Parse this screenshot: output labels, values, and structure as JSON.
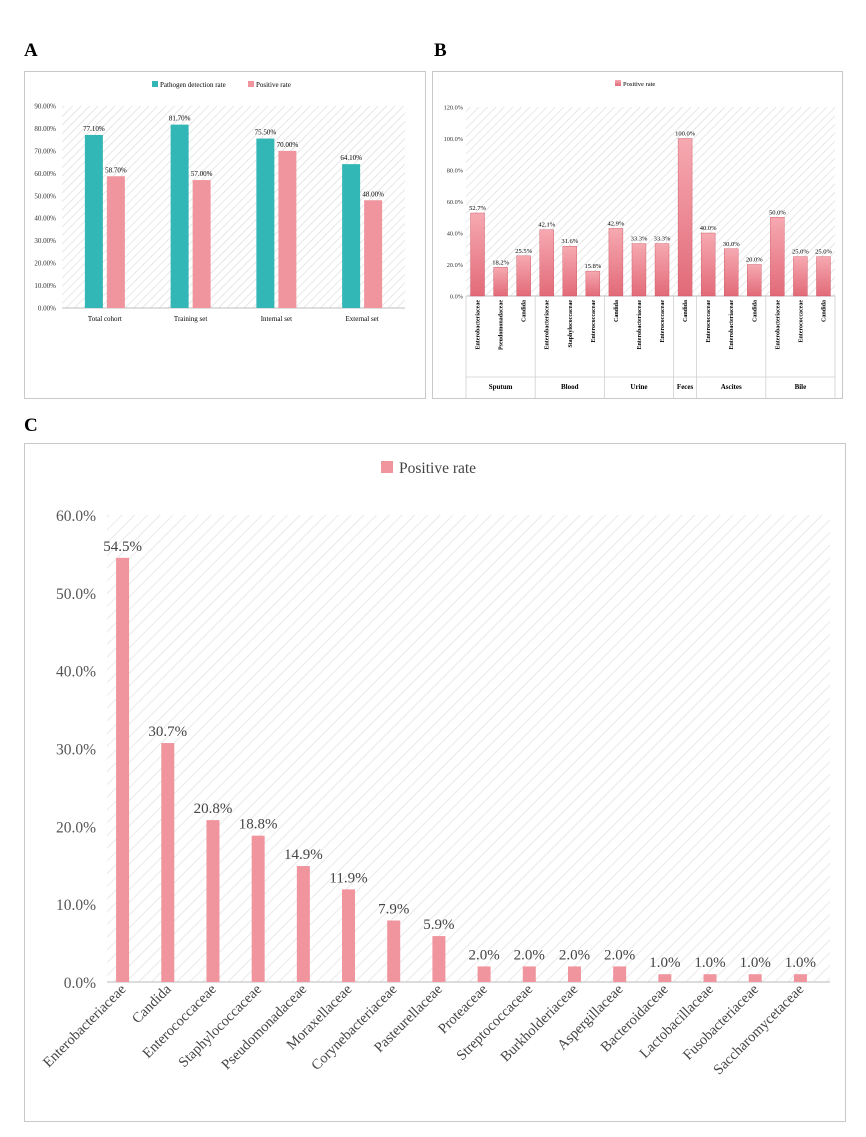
{
  "panels": {
    "a": "A",
    "b": "B",
    "c": "C"
  },
  "colors": {
    "teal": "#33B6B6",
    "pink": "#F0949D",
    "pink_dark": "#E0707D",
    "grid": "#c8c8c8",
    "border": "#c9c9c9"
  },
  "chart_data": [
    {
      "panel": "A",
      "type": "bar",
      "title": "",
      "categories": [
        "Total cohort",
        "Training set",
        "Internal set",
        "External set"
      ],
      "series": [
        {
          "name": "Pathogen detection rate",
          "values": [
            77.1,
            81.7,
            75.5,
            64.1
          ],
          "labels": [
            "77.10%",
            "81.70%",
            "75.50%",
            "64.10%"
          ]
        },
        {
          "name": "Positive rate",
          "values": [
            58.7,
            57.0,
            70.0,
            48.0
          ],
          "labels": [
            "58.70%",
            "57.00%",
            "70.00%",
            "48.00%"
          ]
        }
      ],
      "ylim": [
        0,
        90
      ],
      "yticks": [
        "0.00%",
        "10.00%",
        "20.00%",
        "30.00%",
        "40.00%",
        "50.00%",
        "60.00%",
        "70.00%",
        "80.00%",
        "90.00%"
      ],
      "legend": "top"
    },
    {
      "panel": "B",
      "type": "bar",
      "title": "",
      "series": [
        {
          "name": "Positive rate"
        }
      ],
      "groups": [
        {
          "name": "Sputum",
          "items": [
            {
              "label": "Enterobacteriaceae",
              "value": 52.7,
              "text": "52.7%"
            },
            {
              "label": "Pseudomonadaceae",
              "value": 18.2,
              "text": "18.2%"
            },
            {
              "label": "Candida",
              "value": 25.5,
              "text": "25.5%"
            }
          ]
        },
        {
          "name": "Blood",
          "items": [
            {
              "label": "Enterobacteriaceae",
              "value": 42.1,
              "text": "42.1%"
            },
            {
              "label": "Staphylococcaceae",
              "value": 31.6,
              "text": "31.6%"
            },
            {
              "label": "Enterococcaceae",
              "value": 15.8,
              "text": "15.8%"
            }
          ]
        },
        {
          "name": "Urine",
          "items": [
            {
              "label": "Candida",
              "value": 42.9,
              "text": "42.9%"
            },
            {
              "label": "Enterobacteriaceae",
              "value": 33.3,
              "text": "33.3%"
            },
            {
              "label": "Enterococcaceae",
              "value": 33.3,
              "text": "33.3%"
            }
          ]
        },
        {
          "name": "Feces",
          "items": [
            {
              "label": "Candida",
              "value": 100.0,
              "text": "100.0%"
            }
          ]
        },
        {
          "name": "Ascites",
          "items": [
            {
              "label": "Enterococcaceae",
              "value": 40.0,
              "text": "40.0%"
            },
            {
              "label": "Enterobacteriaceae",
              "value": 30.0,
              "text": "30.0%"
            },
            {
              "label": "Candida",
              "value": 20.0,
              "text": "20.0%"
            }
          ]
        },
        {
          "name": "Bile",
          "items": [
            {
              "label": "Enterobacteriaceae",
              "value": 50.0,
              "text": "50.0%"
            },
            {
              "label": "Enterococcaceae",
              "value": 25.0,
              "text": "25.0%"
            },
            {
              "label": "Candida",
              "value": 25.0,
              "text": "25.0%"
            }
          ]
        }
      ],
      "ylim": [
        0,
        120
      ],
      "yticks": [
        "0.0%",
        "20.0%",
        "40.0%",
        "60.0%",
        "80.0%",
        "100.0%",
        "120.0%"
      ],
      "legend": "top"
    },
    {
      "panel": "C",
      "type": "bar",
      "title": "",
      "series": [
        {
          "name": "Positive rate"
        }
      ],
      "categories": [
        "Enterobacteriaceae",
        "Candida",
        "Enterococcaceae",
        "Staphylococcaceae",
        "Pseudomonadaceae",
        "Moraxellaceae",
        "Corynebacteriaceae",
        "Pasteurellaceae",
        "Proteaceae",
        "Streptococcaceae",
        "Burkholderiaceae",
        "Aspergillaceae",
        "Bacteroidaceae",
        "Lactobacillaceae",
        "Fusobacteriaceae",
        "Saccharomycetaceae"
      ],
      "values": [
        54.5,
        30.7,
        20.8,
        18.8,
        14.9,
        11.9,
        7.9,
        5.9,
        2.0,
        2.0,
        2.0,
        2.0,
        1.0,
        1.0,
        1.0,
        1.0
      ],
      "labels": [
        "54.5%",
        "30.7%",
        "20.8%",
        "18.8%",
        "14.9%",
        "11.9%",
        "7.9%",
        "5.9%",
        "2.0%",
        "2.0%",
        "2.0%",
        "2.0%",
        "1.0%",
        "1.0%",
        "1.0%",
        "1.0%"
      ],
      "ylim": [
        0,
        60
      ],
      "yticks": [
        "0.0%",
        "10.0%",
        "20.0%",
        "30.0%",
        "40.0%",
        "50.0%",
        "60.0%"
      ],
      "legend": "top"
    }
  ]
}
